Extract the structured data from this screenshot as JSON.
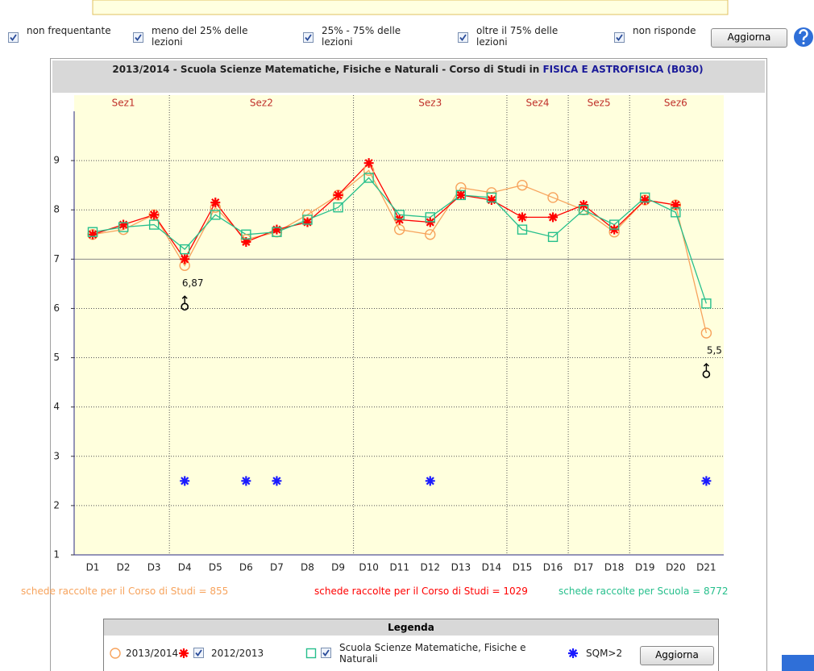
{
  "filters": {
    "options": [
      "non frequentante",
      "meno del 25% delle lezioni",
      "25% - 75% delle lezioni",
      "oltre il 75% delle lezioni",
      "non risponde"
    ],
    "button": "Aggiorna"
  },
  "chart_data": {
    "type": "line",
    "title": "2013/2014 - Scuola Scienze Matematiche, Fisiche e Naturali - Corso di Studi in",
    "title_highlight": "FISICA E ASTROFISICA (B030)",
    "categories": [
      "D1",
      "D2",
      "D3",
      "D4",
      "D5",
      "D6",
      "D7",
      "D8",
      "D9",
      "D10",
      "D11",
      "D12",
      "D13",
      "D14",
      "D15",
      "D16",
      "D17",
      "D18",
      "D19",
      "D20",
      "D21"
    ],
    "sections": [
      {
        "label": "Sez1",
        "span": 3
      },
      {
        "label": "Sez2",
        "span": 6
      },
      {
        "label": "Sez3",
        "span": 5
      },
      {
        "label": "Sez4",
        "span": 2
      },
      {
        "label": "Sez5",
        "span": 2
      },
      {
        "label": "Sez6",
        "span": 3
      }
    ],
    "series": [
      {
        "name": "2013/2014",
        "color": "#f7a35c",
        "marker": "circle",
        "line": true,
        "values": [
          7.5,
          7.6,
          7.9,
          6.87,
          8.05,
          7.4,
          7.55,
          7.9,
          8.3,
          8.8,
          7.6,
          7.5,
          8.45,
          8.35,
          8.5,
          8.25,
          8.0,
          7.55,
          8.2,
          8.1,
          5.5
        ]
      },
      {
        "name": "2012/2013",
        "color": "#ff0000",
        "marker": "star",
        "line": true,
        "checkbox": true,
        "values": [
          7.5,
          7.7,
          7.9,
          7.0,
          8.15,
          7.35,
          7.6,
          7.75,
          8.3,
          8.95,
          7.8,
          7.75,
          8.3,
          8.2,
          7.85,
          7.85,
          8.1,
          7.6,
          8.2,
          8.1,
          null
        ]
      },
      {
        "name": "Scuola Scienze Matematiche, Fisiche e Naturali",
        "color": "#26bf8c",
        "marker": "square",
        "line": true,
        "checkbox": true,
        "values": [
          7.55,
          7.65,
          7.7,
          7.2,
          7.9,
          7.5,
          7.55,
          7.8,
          8.05,
          8.65,
          7.9,
          7.85,
          8.3,
          8.25,
          7.6,
          7.45,
          8.0,
          7.7,
          8.25,
          7.95,
          6.1
        ]
      },
      {
        "name": "SQM>2",
        "color": "#1a1aff",
        "marker": "star",
        "line": false,
        "values": [
          null,
          null,
          null,
          2.5,
          null,
          2.5,
          2.5,
          null,
          null,
          null,
          null,
          2.5,
          null,
          null,
          null,
          null,
          null,
          null,
          null,
          null,
          2.5
        ]
      }
    ],
    "ylim": [
      1,
      10
    ],
    "yticks": [
      1,
      2,
      3,
      4,
      5,
      6,
      7,
      8,
      9
    ],
    "grid": true,
    "reference_line": 7,
    "annotations": [
      {
        "text": "6,87",
        "category": "D4"
      },
      {
        "text": "5,5",
        "category": "D21"
      }
    ],
    "counts": [
      {
        "label": "schede raccolte per il Corso di Studi =",
        "value": 855,
        "color": "#f7a35c"
      },
      {
        "label": "schede raccolte per il Corso di Studi =",
        "value": 1029,
        "color": "#ff0000"
      },
      {
        "label": "schede raccolte per Scuola =",
        "value": 8772,
        "color": "#26bf8c"
      }
    ]
  },
  "legend": {
    "title": "Legenda",
    "button": "Aggiorna"
  }
}
